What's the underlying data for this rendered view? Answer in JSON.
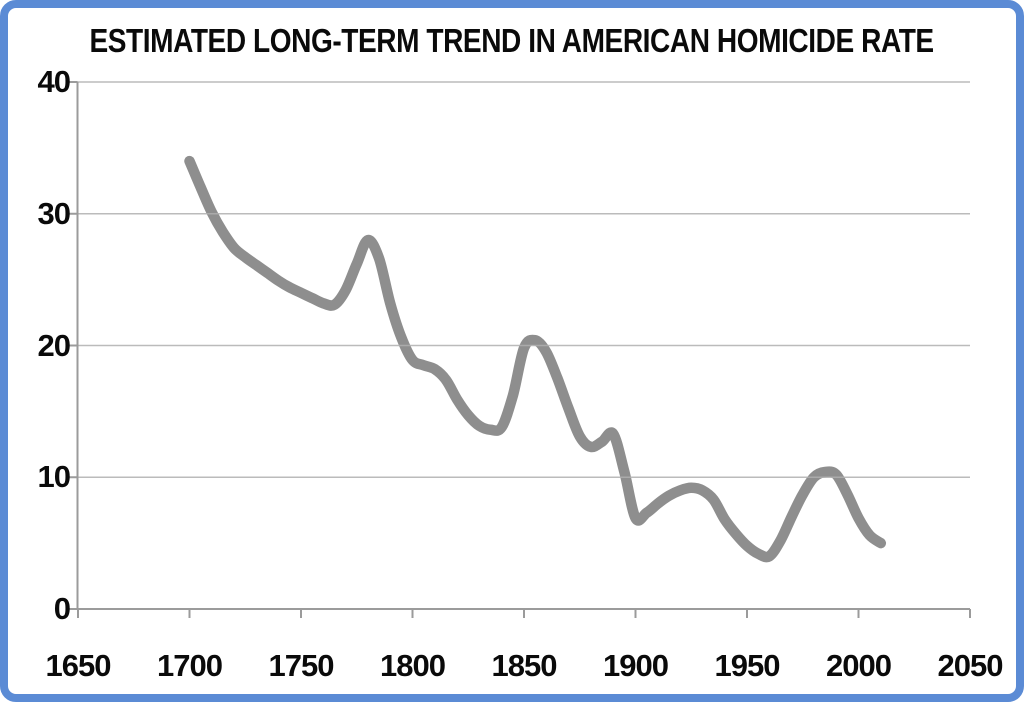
{
  "frame": {
    "border_color": "#5b8bd5",
    "background_color": "#ffffff"
  },
  "colors": {
    "line": "#8e8e8e",
    "gridline": "#b0b0b0",
    "axis": "#9b9b9b",
    "text": "#0a0a0a"
  },
  "chart_data": {
    "type": "line",
    "title": "ESTIMATED LONG-TERM TREND IN AMERICAN HOMICIDE RATE",
    "xlabel": "",
    "ylabel": "",
    "xlim": [
      1650,
      2050
    ],
    "ylim": [
      0,
      40
    ],
    "x_ticks": [
      "1650",
      "1700",
      "1750",
      "1800",
      "1850",
      "1900",
      "1950",
      "2000",
      "2050"
    ],
    "x_tick_values": [
      1650,
      1700,
      1750,
      1800,
      1850,
      1900,
      1950,
      2000,
      2050
    ],
    "y_ticks": [
      "0",
      "10",
      "20",
      "30",
      "40"
    ],
    "y_tick_values": [
      0,
      10,
      20,
      30,
      40
    ],
    "grid": "horizontal",
    "legend": "none",
    "series": [
      {
        "color": "#8e8e8e",
        "stroke_width": 10.5,
        "points": [
          [
            1700,
            34.0
          ],
          [
            1705,
            32.0
          ],
          [
            1710,
            30.1
          ],
          [
            1715,
            28.6
          ],
          [
            1720,
            27.4
          ],
          [
            1725,
            26.7
          ],
          [
            1730,
            26.1
          ],
          [
            1735,
            25.5
          ],
          [
            1740,
            24.9
          ],
          [
            1745,
            24.4
          ],
          [
            1750,
            24.0
          ],
          [
            1755,
            23.6
          ],
          [
            1760,
            23.2
          ],
          [
            1765,
            23.1
          ],
          [
            1770,
            24.2
          ],
          [
            1775,
            26.2
          ],
          [
            1780,
            28.0
          ],
          [
            1785,
            26.6
          ],
          [
            1790,
            23.2
          ],
          [
            1795,
            20.6
          ],
          [
            1800,
            18.9
          ],
          [
            1805,
            18.5
          ],
          [
            1810,
            18.2
          ],
          [
            1815,
            17.4
          ],
          [
            1820,
            15.9
          ],
          [
            1825,
            14.7
          ],
          [
            1830,
            13.9
          ],
          [
            1835,
            13.6
          ],
          [
            1840,
            13.8
          ],
          [
            1845,
            16.2
          ],
          [
            1850,
            19.8
          ],
          [
            1855,
            20.4
          ],
          [
            1860,
            19.5
          ],
          [
            1865,
            17.5
          ],
          [
            1870,
            15.2
          ],
          [
            1875,
            13.1
          ],
          [
            1880,
            12.3
          ],
          [
            1885,
            12.7
          ],
          [
            1890,
            13.3
          ],
          [
            1895,
            10.4
          ],
          [
            1900,
            6.9
          ],
          [
            1905,
            7.3
          ],
          [
            1910,
            8.0
          ],
          [
            1915,
            8.6
          ],
          [
            1920,
            9.0
          ],
          [
            1925,
            9.2
          ],
          [
            1930,
            9.0
          ],
          [
            1935,
            8.3
          ],
          [
            1940,
            6.8
          ],
          [
            1945,
            5.7
          ],
          [
            1950,
            4.8
          ],
          [
            1955,
            4.2
          ],
          [
            1960,
            4.0
          ],
          [
            1965,
            5.2
          ],
          [
            1970,
            7.0
          ],
          [
            1975,
            8.7
          ],
          [
            1980,
            10.0
          ],
          [
            1985,
            10.4
          ],
          [
            1990,
            10.2
          ],
          [
            1995,
            8.7
          ],
          [
            2000,
            6.9
          ],
          [
            2005,
            5.6
          ],
          [
            2010,
            5.0
          ]
        ]
      }
    ]
  }
}
